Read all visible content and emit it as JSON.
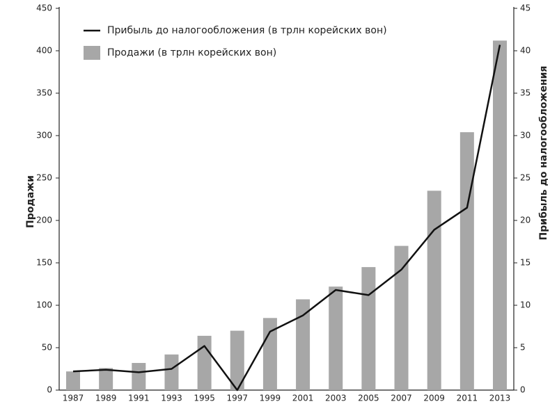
{
  "chart_data": {
    "type": "bar",
    "y_label": "Продажи",
    "y2_label": "Прибыль до налогообложения",
    "categories": [
      "1987",
      "1989",
      "1991",
      "1993",
      "1995",
      "1997",
      "1999",
      "2001",
      "2003",
      "2005",
      "2007",
      "2009",
      "2011",
      "2013"
    ],
    "series": [
      {
        "name": "Продажи (в трлн корейских вон)",
        "type": "bar",
        "color": "#a7a7a7",
        "values": [
          22,
          26,
          32,
          42,
          64,
          70,
          85,
          107,
          122,
          145,
          170,
          235,
          304,
          412
        ]
      },
      {
        "name": "Прибыль до налогообложения (в трлн корейских вон)",
        "type": "line",
        "axis": "y2",
        "color": "#111111",
        "values": [
          2.2,
          2.4,
          2.1,
          2.5,
          5.2,
          0.0,
          6.9,
          8.8,
          11.8,
          11.2,
          14.2,
          18.9,
          21.5,
          40.7
        ]
      }
    ],
    "ylim": [
      0,
      450
    ],
    "yticks": [
      0,
      50,
      100,
      150,
      200,
      250,
      300,
      350,
      400,
      450
    ],
    "y2lim": [
      0,
      45
    ],
    "y2ticks": [
      0,
      5,
      10,
      15,
      20,
      25,
      30,
      35,
      40,
      45
    ],
    "legend": "top-left"
  }
}
